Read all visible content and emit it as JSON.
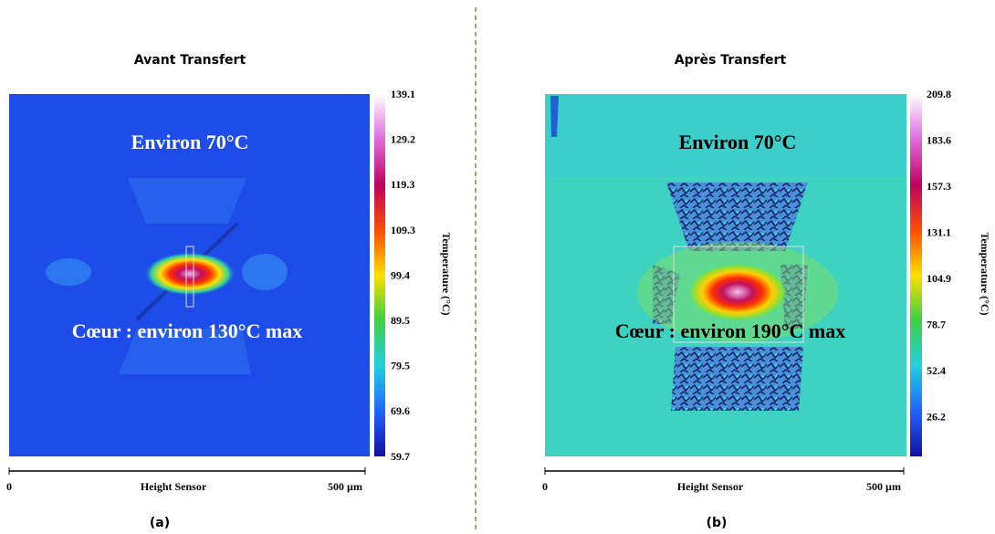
{
  "panels": [
    {
      "title": "Avant Transfert",
      "annotation_top": "Environ 70°C",
      "annotation_core": "Cœur : environ 130°C max",
      "colorbar_ticks": [
        "139.1",
        "129.2",
        "119.3",
        "109.3",
        "99.4",
        "89.5",
        "79.5",
        "69.6",
        "59.7"
      ],
      "colorbar_label": "Temperature (°C)",
      "scale_start": "0",
      "scale_label": "Height Sensor",
      "scale_end": "500 µm",
      "caption": "(a)"
    },
    {
      "title": "Après Transfert",
      "annotation_top": "Environ 70°C",
      "annotation_core": "Cœur : environ 190°C max",
      "colorbar_ticks": [
        "209.8",
        "183.6",
        "157.3",
        "131.1",
        "104.9",
        "78.7",
        "52.4",
        "26.2"
      ],
      "colorbar_label": "Temperature (°C)",
      "scale_start": "0",
      "scale_label": "Height Sensor",
      "scale_end": "500 µm",
      "caption": "(b)"
    }
  ]
}
